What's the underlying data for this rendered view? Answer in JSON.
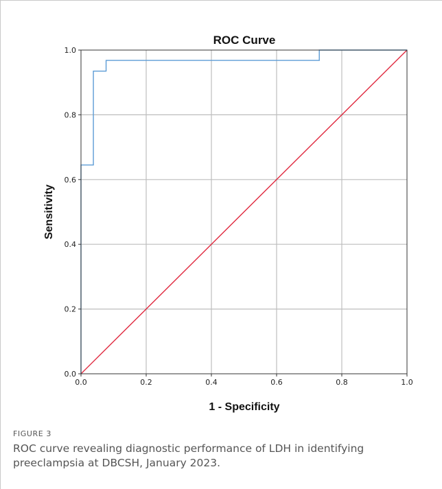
{
  "figure": {
    "label": "FIGURE 3",
    "caption": "ROC curve revealing diagnostic performance of LDH in identifying preeclampsia at DBCSH, January 2023."
  },
  "chart_data": {
    "type": "line",
    "title": "ROC Curve",
    "xlabel": "1 - Specificity",
    "ylabel": "Sensitivity",
    "xlim": [
      0,
      1
    ],
    "ylim": [
      0,
      1
    ],
    "x_ticks": [
      "0.0",
      "0.2",
      "0.4",
      "0.6",
      "0.8",
      "1.0"
    ],
    "y_ticks": [
      "0.0",
      "0.2",
      "0.4",
      "0.6",
      "0.8",
      "1.0"
    ],
    "grid": true,
    "series": [
      {
        "color": "#5b9bd5",
        "step": true,
        "points": [
          [
            0,
            0
          ],
          [
            0,
            0.645
          ],
          [
            0.038,
            0.645
          ],
          [
            0.038,
            0.935
          ],
          [
            0.077,
            0.935
          ],
          [
            0.077,
            0.968
          ],
          [
            0.731,
            0.968
          ],
          [
            0.731,
            1.0
          ],
          [
            1.0,
            1.0
          ]
        ]
      },
      {
        "color": "#e0293f",
        "step": false,
        "points": [
          [
            0,
            0
          ],
          [
            1,
            1
          ]
        ]
      }
    ]
  }
}
